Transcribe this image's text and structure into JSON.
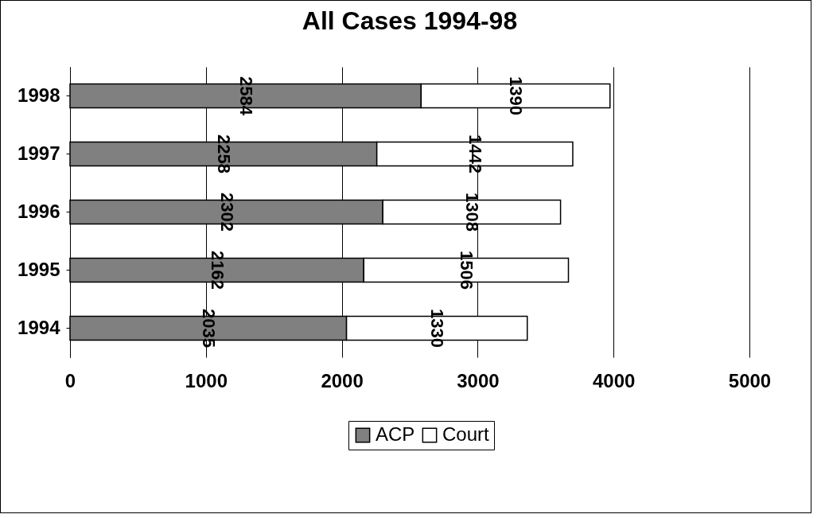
{
  "chart_data": {
    "type": "bar",
    "title": "All Cases 1994-98",
    "orientation": "horizontal",
    "stacked": true,
    "categories": [
      "1998",
      "1997",
      "1996",
      "1995",
      "1994"
    ],
    "series": [
      {
        "name": "ACP",
        "color": "#808080",
        "values": [
          2584,
          2258,
          2302,
          2162,
          2035
        ]
      },
      {
        "name": "Court",
        "color": "#ffffff",
        "values": [
          1390,
          1442,
          1308,
          1506,
          1330
        ]
      }
    ],
    "xlim": [
      0,
      5000
    ],
    "xticks": [
      0,
      1000,
      2000,
      3000,
      4000,
      5000
    ],
    "grid": "x",
    "legend": "bottom",
    "data_labels": true
  }
}
